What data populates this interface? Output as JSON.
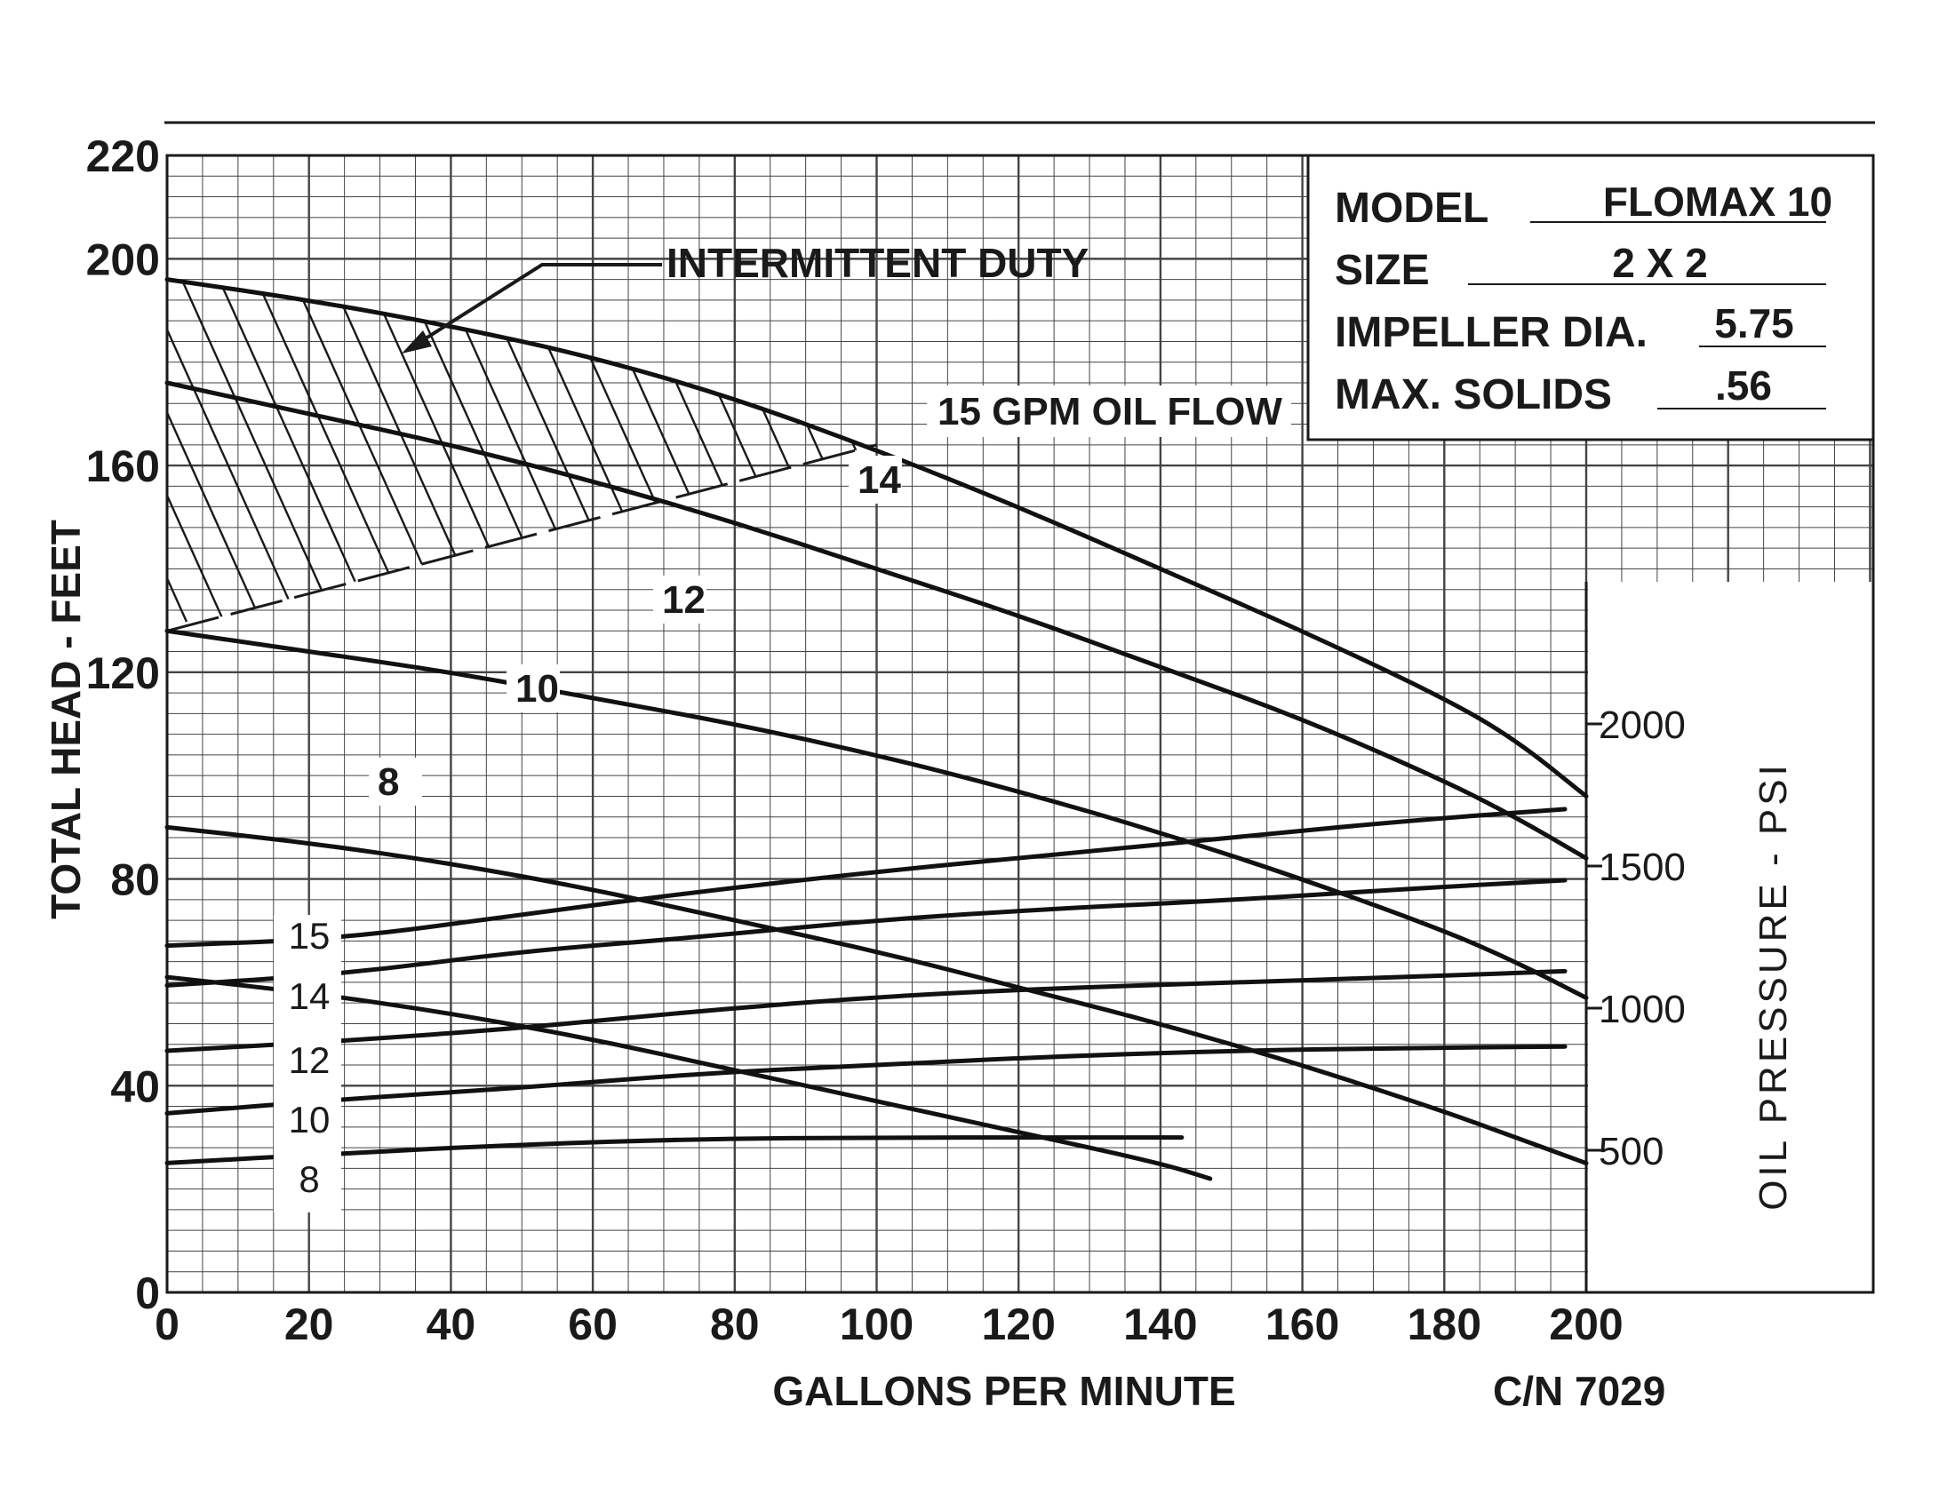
{
  "chart_data": {
    "type": "line",
    "xlabel": "GALLONS PER MINUTE",
    "ylabel": "TOTAL HEAD - FEET",
    "y2label": "OIL PRESSURE - PSI",
    "xlim": [
      0,
      200
    ],
    "ylim": [
      0,
      220
    ],
    "x_ticks": [
      "0",
      "20",
      "40",
      "60",
      "80",
      "100",
      "120",
      "140",
      "160",
      "180",
      "200"
    ],
    "y_ticks": [
      "0",
      "40",
      "80",
      "120",
      "160",
      "200",
      "220"
    ],
    "y2_ticks": [
      "500",
      "1000",
      "1500",
      "2000"
    ],
    "grid": true,
    "head_series": [
      {
        "name": "15 GPM OIL FLOW",
        "x": [
          0,
          20,
          40,
          60,
          80,
          100,
          120,
          140,
          160,
          180,
          190,
          200
        ],
        "y": [
          196,
          192,
          187,
          181,
          173,
          163,
          152,
          140,
          128,
          115,
          107,
          96
        ]
      },
      {
        "name": "14",
        "x": [
          0,
          20,
          40,
          60,
          80,
          100,
          120,
          140,
          160,
          180,
          190,
          200
        ],
        "y": [
          176,
          170,
          164,
          157,
          149,
          140,
          131,
          121,
          111,
          99,
          92,
          84
        ]
      },
      {
        "name": "12",
        "x": [
          0,
          20,
          40,
          60,
          80,
          100,
          120,
          140,
          160,
          180,
          190,
          200
        ],
        "y": [
          128,
          124,
          120,
          115,
          110,
          104,
          97,
          89,
          80,
          70,
          64,
          57
        ]
      },
      {
        "name": "10",
        "x": [
          0,
          20,
          40,
          60,
          80,
          100,
          120,
          140,
          160,
          180,
          190,
          200
        ],
        "y": [
          90,
          87,
          83,
          78,
          72,
          66,
          59,
          52,
          44,
          35,
          30,
          25
        ]
      },
      {
        "name": "8",
        "x": [
          0,
          20,
          40,
          60,
          80,
          100,
          120,
          140,
          147
        ],
        "y": [
          61,
          58,
          54,
          49,
          43,
          37,
          31,
          25,
          22
        ]
      }
    ],
    "pressure_series": [
      {
        "name": "15",
        "x": [
          0,
          25,
          50,
          75,
          100,
          125,
          150,
          175,
          197
        ],
        "y": [
          1220,
          1245,
          1330,
          1410,
          1480,
          1540,
          1600,
          1660,
          1700
        ]
      },
      {
        "name": "14",
        "x": [
          0,
          25,
          50,
          75,
          100,
          125,
          150,
          175,
          197
        ],
        "y": [
          1080,
          1120,
          1200,
          1250,
          1310,
          1350,
          1380,
          1420,
          1450
        ]
      },
      {
        "name": "12",
        "x": [
          0,
          25,
          50,
          75,
          100,
          125,
          150,
          175,
          197
        ],
        "y": [
          850,
          885,
          930,
          990,
          1040,
          1070,
          1090,
          1110,
          1130
        ]
      },
      {
        "name": "10",
        "x": [
          0,
          25,
          50,
          75,
          100,
          125,
          150,
          175,
          197
        ],
        "y": [
          630,
          680,
          720,
          770,
          800,
          830,
          850,
          860,
          865
        ]
      },
      {
        "name": "8",
        "x": [
          0,
          25,
          50,
          75,
          100,
          125,
          143
        ],
        "y": [
          455,
          490,
          520,
          540,
          545,
          545,
          545
        ]
      }
    ],
    "intermittent_duty": {
      "label": "INTERMITTENT DUTY",
      "lower_boundary": {
        "x": [
          0,
          100
        ],
        "y": [
          128,
          164
        ]
      }
    },
    "info_box": {
      "model_label": "MODEL",
      "model": "FLOMAX 10",
      "size_label": "SIZE",
      "size": "2 X 2",
      "impeller_label": "IMPELLER DIA.",
      "impeller": "5.75",
      "solids_label": "MAX. SOLIDS",
      "solids": ".56"
    },
    "catalog_number": "C/N  7029"
  }
}
